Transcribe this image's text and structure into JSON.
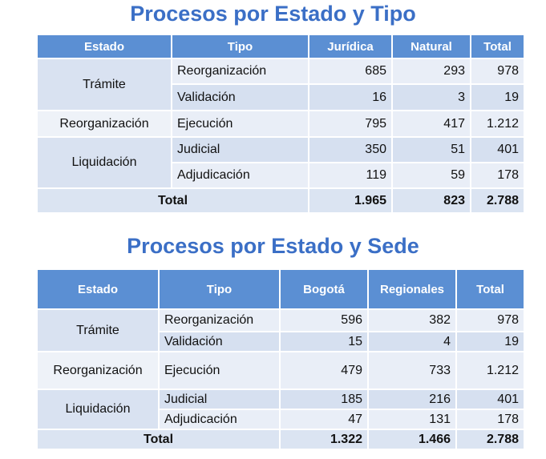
{
  "tables": [
    {
      "title": "Procesos por Estado y Tipo",
      "header": [
        "Estado",
        "Tipo",
        "Jurídica",
        "Natural",
        "Total"
      ],
      "groups": [
        {
          "estado": "Trámite",
          "rows": [
            [
              "Reorganización",
              "685",
              "293",
              "978"
            ],
            [
              "Validación",
              "16",
              "3",
              "19"
            ]
          ]
        },
        {
          "estado": "Reorganización",
          "rows": [
            [
              "Ejecución",
              "795",
              "417",
              "1.212"
            ]
          ]
        },
        {
          "estado": "Liquidación",
          "rows": [
            [
              "Judicial",
              "350",
              "51",
              "401"
            ],
            [
              "Adjudicación",
              "119",
              "59",
              "178"
            ]
          ]
        }
      ],
      "total": {
        "label": "Total",
        "values": [
          "1.965",
          "823",
          "2.788"
        ]
      }
    },
    {
      "title": "Procesos por Estado y Sede",
      "header": [
        "Estado",
        "Tipo",
        "Bogotá",
        "Regionales",
        "Total"
      ],
      "groups": [
        {
          "estado": "Trámite",
          "rows": [
            [
              "Reorganización",
              "596",
              "382",
              "978"
            ],
            [
              "Validación",
              "15",
              "4",
              "19"
            ]
          ]
        },
        {
          "estado": "Reorganización",
          "rows": [
            [
              "Ejecución",
              "479",
              "733",
              "1.212"
            ]
          ]
        },
        {
          "estado": "Liquidación",
          "rows": [
            [
              "Judicial",
              "185",
              "216",
              "401"
            ],
            [
              "Adjudicación",
              "47",
              "131",
              "178"
            ]
          ]
        }
      ],
      "total": {
        "label": "Total",
        "values": [
          "1.322",
          "1.466",
          "2.788"
        ]
      }
    }
  ]
}
